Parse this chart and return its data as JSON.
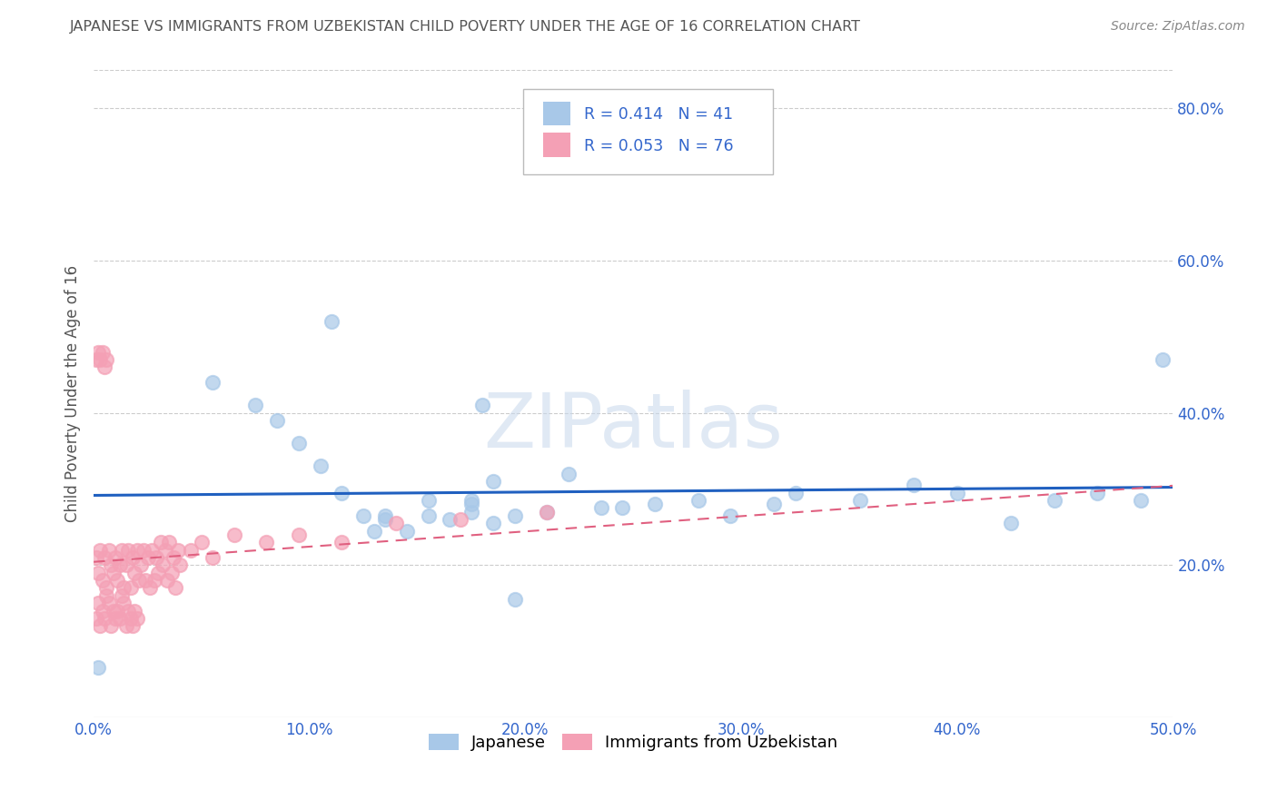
{
  "title": "JAPANESE VS IMMIGRANTS FROM UZBEKISTAN CHILD POVERTY UNDER THE AGE OF 16 CORRELATION CHART",
  "source": "Source: ZipAtlas.com",
  "ylabel": "Child Poverty Under the Age of 16",
  "x_min": 0.0,
  "x_max": 0.5,
  "y_min": 0.0,
  "y_max": 0.85,
  "x_ticks": [
    0.0,
    0.1,
    0.2,
    0.3,
    0.4,
    0.5
  ],
  "x_tick_labels": [
    "0.0%",
    "10.0%",
    "20.0%",
    "30.0%",
    "40.0%",
    "50.0%"
  ],
  "y_ticks": [
    0.2,
    0.4,
    0.6,
    0.8
  ],
  "y_tick_labels": [
    "20.0%",
    "40.0%",
    "60.0%",
    "80.0%"
  ],
  "watermark": "ZIPatlas",
  "legend_R1": "R = 0.414",
  "legend_N1": "N = 41",
  "legend_R2": "R = 0.053",
  "legend_N2": "N = 76",
  "japanese_color": "#a8c8e8",
  "uzbekistan_color": "#f4a0b5",
  "japanese_line_color": "#2060c0",
  "uzbekistan_line_color": "#e06080",
  "background_color": "#ffffff",
  "grid_color": "#cccccc",
  "title_color": "#555555",
  "axis_label_color": "#3366cc",
  "japanese_x": [
    0.002,
    0.055,
    0.075,
    0.085,
    0.095,
    0.105,
    0.115,
    0.125,
    0.135,
    0.145,
    0.155,
    0.165,
    0.175,
    0.185,
    0.195,
    0.22,
    0.235,
    0.245,
    0.26,
    0.28,
    0.295,
    0.315,
    0.325,
    0.355,
    0.38,
    0.4,
    0.425,
    0.445,
    0.465,
    0.485,
    0.495,
    0.185,
    0.135,
    0.155,
    0.175,
    0.11,
    0.13,
    0.175,
    0.18,
    0.195,
    0.21
  ],
  "japanese_y": [
    0.065,
    0.44,
    0.41,
    0.39,
    0.36,
    0.33,
    0.295,
    0.265,
    0.265,
    0.245,
    0.285,
    0.26,
    0.27,
    0.255,
    0.265,
    0.32,
    0.275,
    0.275,
    0.28,
    0.285,
    0.265,
    0.28,
    0.295,
    0.285,
    0.305,
    0.295,
    0.255,
    0.285,
    0.295,
    0.285,
    0.47,
    0.31,
    0.26,
    0.265,
    0.285,
    0.52,
    0.245,
    0.28,
    0.41,
    0.155,
    0.27
  ],
  "uzbekistan_x": [
    0.001,
    0.002,
    0.003,
    0.004,
    0.005,
    0.006,
    0.007,
    0.008,
    0.009,
    0.01,
    0.011,
    0.012,
    0.013,
    0.014,
    0.015,
    0.016,
    0.017,
    0.018,
    0.019,
    0.02,
    0.021,
    0.022,
    0.023,
    0.024,
    0.025,
    0.026,
    0.027,
    0.028,
    0.029,
    0.03,
    0.031,
    0.032,
    0.033,
    0.034,
    0.035,
    0.036,
    0.037,
    0.038,
    0.039,
    0.04,
    0.001,
    0.002,
    0.003,
    0.004,
    0.005,
    0.006,
    0.007,
    0.008,
    0.009,
    0.01,
    0.011,
    0.012,
    0.013,
    0.014,
    0.015,
    0.016,
    0.017,
    0.018,
    0.019,
    0.02,
    0.045,
    0.05,
    0.055,
    0.065,
    0.08,
    0.095,
    0.115,
    0.14,
    0.17,
    0.21,
    0.001,
    0.002,
    0.003,
    0.004,
    0.005,
    0.006
  ],
  "uzbekistan_y": [
    0.21,
    0.19,
    0.22,
    0.18,
    0.21,
    0.17,
    0.22,
    0.2,
    0.19,
    0.21,
    0.18,
    0.2,
    0.22,
    0.17,
    0.2,
    0.22,
    0.17,
    0.21,
    0.19,
    0.22,
    0.18,
    0.2,
    0.22,
    0.18,
    0.21,
    0.17,
    0.22,
    0.18,
    0.21,
    0.19,
    0.23,
    0.2,
    0.22,
    0.18,
    0.23,
    0.19,
    0.21,
    0.17,
    0.22,
    0.2,
    0.13,
    0.15,
    0.12,
    0.14,
    0.13,
    0.16,
    0.15,
    0.12,
    0.14,
    0.13,
    0.14,
    0.13,
    0.16,
    0.15,
    0.12,
    0.14,
    0.13,
    0.12,
    0.14,
    0.13,
    0.22,
    0.23,
    0.21,
    0.24,
    0.23,
    0.24,
    0.23,
    0.255,
    0.26,
    0.27,
    0.47,
    0.48,
    0.47,
    0.48,
    0.46,
    0.47
  ]
}
